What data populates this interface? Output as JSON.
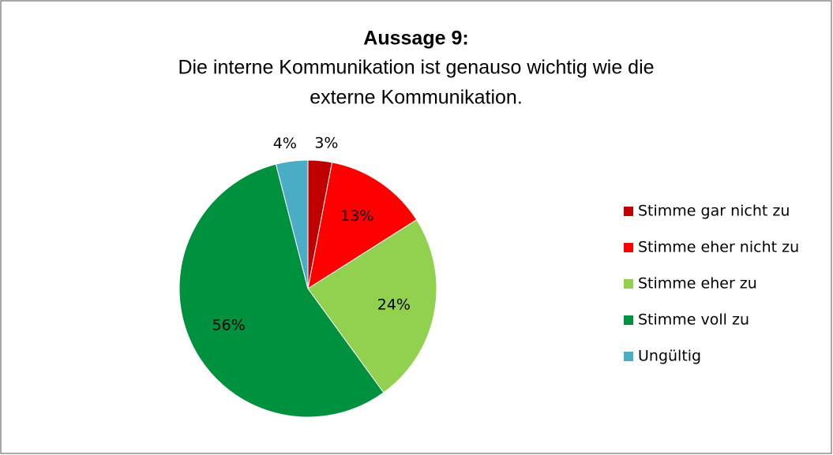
{
  "chart_data": {
    "type": "pie",
    "title": "Aussage 9:",
    "subtitle": [
      "Die interne Kommunikation ist genauso wichtig wie die",
      "externe Kommunikation."
    ],
    "categories": [
      "Stimme gar nicht zu",
      "Stimme eher nicht zu",
      "Stimme eher zu",
      "Stimme voll zu",
      "Ungültig"
    ],
    "values": [
      3,
      13,
      24,
      56,
      4
    ],
    "value_labels": [
      "3%",
      "13%",
      "24%",
      "56%",
      "4%"
    ],
    "colors": [
      "#c00000",
      "#ff0000",
      "#92d050",
      "#00913f",
      "#4bacc6"
    ],
    "legend": "right"
  }
}
